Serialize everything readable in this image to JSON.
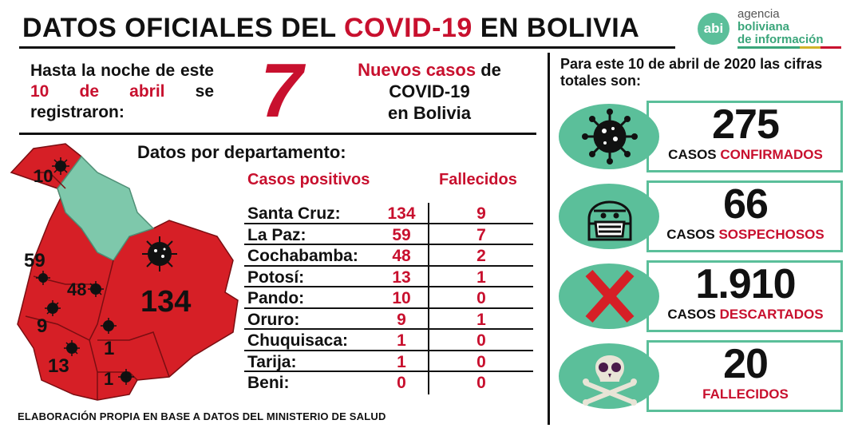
{
  "header": {
    "title_prefix": "DATOS OFICIALES DEL",
    "title_highlight": "COVID-19",
    "title_suffix": "EN BOLIVIA"
  },
  "logo": {
    "badge": "abi",
    "line1": "agencia",
    "line2": "boliviana",
    "line3": "de información"
  },
  "intro": {
    "text_a": "Hasta la noche de este",
    "date": "10 de abril",
    "text_b": "se registraron:"
  },
  "new_cases": {
    "count": "7",
    "label_red": "Nuevos casos",
    "label_a": "de",
    "label_b": "COVID-19",
    "label_c": "en Bolivia"
  },
  "departments": {
    "title": "Datos por departamento:",
    "col_positive": "Casos positivos",
    "col_deaths": "Fallecidos",
    "rows": [
      {
        "name": "Santa Cruz:",
        "positive": "134",
        "deaths": "9"
      },
      {
        "name": "La Paz:",
        "positive": "59",
        "deaths": "7"
      },
      {
        "name": "Cochabamba:",
        "positive": "48",
        "deaths": "2"
      },
      {
        "name": "Potosí:",
        "positive": "13",
        "deaths": "1"
      },
      {
        "name": "Pando:",
        "positive": "10",
        "deaths": "0"
      },
      {
        "name": "Oruro:",
        "positive": "9",
        "deaths": "1"
      },
      {
        "name": "Chuquisaca:",
        "positive": "1",
        "deaths": "0"
      },
      {
        "name": "Tarija:",
        "positive": "1",
        "deaths": "0"
      },
      {
        "name": "Beni:",
        "positive": "0",
        "deaths": "0"
      }
    ]
  },
  "map_labels": {
    "pando": "10",
    "la_paz": "59",
    "cochabamba": "48",
    "santa_cruz": "134",
    "oruro": "9",
    "potosi": "13",
    "chuquisaca": "1",
    "tarija": "1"
  },
  "totals": {
    "title": "Para este 10 de abril de 2020 las cifras totales son:",
    "items": [
      {
        "number": "275",
        "label_a": "CASOS",
        "label_b": "CONFIRMADOS",
        "icon": "virus-icon"
      },
      {
        "number": "66",
        "label_a": "CASOS",
        "label_b": "SOSPECHOSOS",
        "icon": "masked-person-icon"
      },
      {
        "number": "1.910",
        "label_a": "CASOS",
        "label_b": "DESCARTADOS",
        "icon": "red-x-icon"
      },
      {
        "number": "20",
        "label_a": "",
        "label_b": "FALLECIDOS",
        "icon": "skull-crossbones-icon"
      }
    ]
  },
  "footer": "ELABORACIÓN PROPIA EN BASE A DATOS DEL MINISTERIO DE SALUD",
  "colors": {
    "accent_red": "#c8102e",
    "accent_green": "#5bbf9a",
    "text": "#111111"
  }
}
